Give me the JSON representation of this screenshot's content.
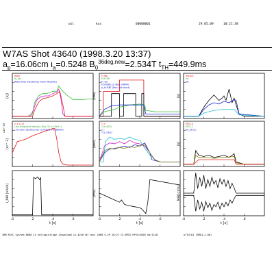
{
  "header": {
    "user": "wil",
    "machine": "kus",
    "code": "00000001",
    "date": "29.05.09",
    "time": "10:21:38"
  },
  "title": "W7AS Shot 43640 (1998.3.20 13:37)",
  "params": {
    "a_label": "a",
    "a_sub": "p",
    "a_value": "=16.06cm",
    "iota_label": "ι",
    "iota_sub": "a",
    "iota_value": "=0.5248",
    "b_label": "B",
    "b_sub": "0",
    "b_sup": "36deg,new",
    "b_value": "=2.534T",
    "t_label": "t",
    "t_sub": "TH",
    "t_value": "=449.9ms"
  },
  "footer": {
    "left": "IBM RISC System 6000  c1 ed/cpplot/ppe /Download c1-4240 AH test 2009.5.29 10:21 CS-BPCS HPSS=3605 ed/1118",
    "right": "w7TU/01 (SMU1.2.80)"
  },
  "colors": {
    "black": "#000000",
    "red": "#e01010",
    "green": "#30c030",
    "blue": "#1020d0",
    "cyan": "#20c0d0",
    "magenta": "#d020d0",
    "olive": "#808000"
  },
  "chart_data": [
    {
      "id": "c1",
      "type": "line",
      "ylabel": "[kJ]",
      "xlim": [
        0,
        0.8
      ],
      "xticks": [
        ".0",
        ".2",
        ".4",
        ".6"
      ],
      "annotations": [
        "Wdia",
        "W_kin",
        "Wdia (N/2) wrecked by mean WLD/8(c)"
      ],
      "series": [
        {
          "color": "green",
          "x": [
            0,
            0.15,
            0.2,
            0.22,
            0.26,
            0.3,
            0.34,
            0.4,
            0.44,
            0.46,
            0.5,
            0.55,
            0.6,
            0.65,
            0.7,
            0.75,
            0.8
          ],
          "y": [
            0.05,
            0.05,
            0.1,
            0.35,
            0.5,
            0.55,
            0.55,
            0.6,
            0.6,
            0.72,
            0.6,
            0.5,
            0.42,
            0.42,
            0.42,
            0.43,
            0.43
          ]
        },
        {
          "color": "magenta",
          "x": [
            0,
            0.18,
            0.21,
            0.24,
            0.28,
            0.32,
            0.36,
            0.4,
            0.44,
            0.46,
            0.48,
            0.5,
            0.52,
            0.8
          ],
          "y": [
            0.05,
            0.05,
            0.2,
            0.4,
            0.48,
            0.5,
            0.5,
            0.55,
            0.58,
            0.65,
            0.45,
            0.1,
            0.05,
            0.05
          ]
        },
        {
          "color": "red",
          "x": [
            0,
            0.2,
            0.22,
            0.26,
            0.3,
            0.35,
            0.4,
            0.44,
            0.47,
            0.5,
            0.52,
            0.8
          ],
          "y": [
            0.05,
            0.05,
            0.18,
            0.36,
            0.44,
            0.46,
            0.5,
            0.55,
            0.6,
            0.3,
            0.05,
            0.05
          ]
        }
      ]
    },
    {
      "id": "c2",
      "type": "line",
      "ylabel": "[MW]",
      "xlim": [
        0,
        0.8
      ],
      "xticks": [
        ".0",
        ".2",
        ".4",
        ".6"
      ],
      "annotations": [
        "P_NBI",
        "P_ECRH",
        "P_rad",
        "Ecrh/NBI L2 (Box: S4R04)",
        "p_lcf BBT (Box: not found)"
      ],
      "series": [
        {
          "color": "red",
          "x": [
            0,
            0.04,
            0.04,
            0.2,
            0.2,
            0.44,
            0.44,
            0.8
          ],
          "y": [
            0.05,
            0.05,
            0.6,
            0.6,
            0.85,
            0.85,
            0.05,
            0.05
          ]
        },
        {
          "color": "black",
          "x": [
            0,
            0.12,
            0.12,
            0.2,
            0.2,
            0.24,
            0.24,
            0.36,
            0.36,
            0.42,
            0.42,
            0.44,
            0.44,
            0.8
          ],
          "y": [
            0.05,
            0.05,
            0.55,
            0.55,
            0.05,
            0.05,
            0.55,
            0.55,
            0.05,
            0.05,
            0.55,
            0.55,
            0.05,
            0.05
          ]
        },
        {
          "color": "green",
          "x": [
            0,
            0.05,
            0.15,
            0.2,
            0.3,
            0.4,
            0.45,
            0.46,
            0.55,
            0.65,
            0.8
          ],
          "y": [
            0.05,
            0.15,
            0.2,
            0.25,
            0.3,
            0.32,
            0.3,
            0.18,
            0.15,
            0.15,
            0.15
          ]
        },
        {
          "color": "blue",
          "x": [
            0,
            0.05,
            0.12,
            0.2,
            0.3,
            0.44,
            0.46,
            0.8
          ],
          "y": [
            0.05,
            0.2,
            0.28,
            0.3,
            0.3,
            0.3,
            0.1,
            0.1
          ]
        }
      ]
    },
    {
      "id": "c3",
      "type": "line",
      "ylabel": "[V]",
      "xlim": [
        0,
        0.8
      ],
      "xticks": [
        ".0",
        ".2",
        ".4",
        ".6"
      ],
      "annotations": [
        "Ha(cpl)",
        "Ha",
        "Hb"
      ],
      "series": [
        {
          "color": "black",
          "x": [
            0,
            0.15,
            0.2,
            0.25,
            0.3,
            0.35,
            0.38,
            0.4,
            0.42,
            0.45,
            0.48,
            0.5,
            0.52,
            0.55,
            0.6,
            0.8
          ],
          "y": [
            0.05,
            0.05,
            0.25,
            0.4,
            0.52,
            0.4,
            0.45,
            0.5,
            0.4,
            0.65,
            0.35,
            0.45,
            0.3,
            0.1,
            0.05,
            0.05
          ]
        },
        {
          "color": "blue",
          "x": [
            0,
            0.15,
            0.2,
            0.25,
            0.3,
            0.35,
            0.4,
            0.45,
            0.5,
            0.52,
            0.55,
            0.8
          ],
          "y": [
            0.05,
            0.05,
            0.2,
            0.3,
            0.35,
            0.32,
            0.38,
            0.35,
            0.42,
            0.4,
            0.1,
            0.05
          ]
        },
        {
          "color": "cyan",
          "x": [
            0,
            0.15,
            0.2,
            0.3,
            0.4,
            0.5,
            0.55,
            0.8
          ],
          "y": [
            0.05,
            0.05,
            0.12,
            0.18,
            0.2,
            0.2,
            0.08,
            0.05
          ]
        }
      ]
    },
    {
      "id": "c4",
      "type": "line",
      "ylabel": "[m^-3]",
      "ylabel_exp": "x10^19",
      "xlim": [
        0,
        0.8
      ],
      "xticks": [
        ".0",
        ".2",
        ".4",
        ".6"
      ],
      "annotations": [
        "n_e (1.5)",
        "Line-integrated density / Box: S1 n2 (Ref 1)",
        "Line aver. density (not 1) (Period: P0556K09)"
      ],
      "series": [
        {
          "color": "red",
          "x": [
            0,
            0.05,
            0.1,
            0.15,
            0.2,
            0.25,
            0.3,
            0.35,
            0.4,
            0.42,
            0.44,
            0.46,
            0.48,
            0.5,
            0.55,
            0.8
          ],
          "y": [
            0.3,
            0.55,
            0.58,
            0.62,
            0.68,
            0.72,
            0.76,
            0.8,
            0.84,
            0.84,
            0.6,
            0.3,
            0.12,
            0.05,
            0.03,
            0.03
          ]
        }
      ]
    },
    {
      "id": "c5",
      "type": "line",
      "ylabel": "[keV]",
      "xlim": [
        0,
        0.8
      ],
      "xticks": [
        ".0",
        ".2",
        ".4",
        ".6"
      ],
      "annotations": [
        "T_e",
        "T_e (ECE)",
        "T_i",
        "T_e (cxrs)"
      ],
      "series": [
        {
          "color": "cyan",
          "x": [
            0,
            0.04,
            0.06,
            0.1,
            0.15,
            0.2,
            0.25,
            0.3,
            0.35,
            0.4,
            0.45,
            0.5,
            0.55,
            0.6,
            0.8
          ],
          "y": [
            0.1,
            0.1,
            0.55,
            0.65,
            0.6,
            0.62,
            0.6,
            0.65,
            0.6,
            0.58,
            0.4,
            0.25,
            0.15,
            0.1,
            0.1
          ]
        },
        {
          "color": "magenta",
          "x": [
            0,
            0.05,
            0.1,
            0.15,
            0.2,
            0.25,
            0.3,
            0.35,
            0.4,
            0.45,
            0.5,
            0.55,
            0.6,
            0.8
          ],
          "y": [
            0.1,
            0.45,
            0.52,
            0.5,
            0.55,
            0.5,
            0.58,
            0.52,
            0.5,
            0.45,
            0.3,
            0.15,
            0.1,
            0.1
          ]
        },
        {
          "color": "blue",
          "x": [
            0,
            0.05,
            0.1,
            0.15,
            0.2,
            0.25,
            0.3,
            0.35,
            0.4,
            0.45,
            0.5,
            0.52,
            0.6,
            0.8
          ],
          "y": [
            0.1,
            0.3,
            0.38,
            0.4,
            0.42,
            0.45,
            0.42,
            0.48,
            0.45,
            0.52,
            0.3,
            0.15,
            0.1,
            0.1
          ]
        },
        {
          "color": "olive",
          "x": [
            0,
            0.05,
            0.1,
            0.15,
            0.2,
            0.25,
            0.3,
            0.35,
            0.4,
            0.45,
            0.5,
            0.55,
            0.6,
            0.8
          ],
          "y": [
            0.1,
            0.35,
            0.4,
            0.38,
            0.42,
            0.4,
            0.44,
            0.42,
            0.46,
            0.48,
            0.3,
            0.15,
            0.1,
            0.1
          ]
        }
      ]
    },
    {
      "id": "c6",
      "type": "line",
      "ylabel": "[V]",
      "xlim": [
        0,
        0.8
      ],
      "xticks": [
        ".0",
        ".2",
        ".4",
        ".6"
      ],
      "annotations": [
        "EPC1.0",
        "EPC1.1",
        "Ha_p6 (1)"
      ],
      "series": [
        {
          "color": "black",
          "x": [
            0,
            0.1,
            0.12,
            0.15,
            0.2,
            0.25,
            0.3,
            0.35,
            0.4,
            0.45,
            0.5,
            0.52,
            0.6,
            0.8
          ],
          "y": [
            0.05,
            0.05,
            0.35,
            0.25,
            0.22,
            0.25,
            0.2,
            0.22,
            0.25,
            0.2,
            0.28,
            0.1,
            0.05,
            0.05
          ]
        },
        {
          "color": "olive",
          "x": [
            0,
            0.1,
            0.12,
            0.15,
            0.2,
            0.3,
            0.4,
            0.5,
            0.52,
            0.6,
            0.8
          ],
          "y": [
            0.05,
            0.05,
            0.25,
            0.2,
            0.2,
            0.18,
            0.2,
            0.22,
            0.08,
            0.05,
            0.05
          ]
        },
        {
          "color": "red",
          "x": [
            0,
            0.1,
            0.15,
            0.2,
            0.3,
            0.4,
            0.5,
            0.52,
            0.8
          ],
          "y": [
            0.05,
            0.05,
            0.15,
            0.15,
            0.15,
            0.15,
            0.15,
            0.05,
            0.05
          ]
        }
      ]
    },
    {
      "id": "c7",
      "type": "line",
      "ylabel": "I_NBI [mV/A]",
      "xlim": [
        0,
        0.8
      ],
      "xticks": [
        ".0",
        ".2",
        ".4",
        ".6"
      ],
      "xlabel": "t [s]",
      "series": [
        {
          "color": "black",
          "x": [
            0,
            0.15,
            0.2,
            0.21,
            0.23,
            0.25,
            0.27,
            0.28,
            0.29,
            0.8
          ],
          "y": [
            0.02,
            0.02,
            0.02,
            0.85,
            0.82,
            0.86,
            0.8,
            0.85,
            0.02,
            0.02
          ]
        }
      ]
    },
    {
      "id": "c8",
      "type": "line",
      "ylabel": "[mV]",
      "xlim": [
        0,
        0.8
      ],
      "xticks": [
        ".0",
        ".2",
        ".4",
        ".6"
      ],
      "xlabel": "t [s]",
      "series": [
        {
          "color": "black",
          "x": [
            0,
            0.05,
            0.1,
            0.15,
            0.2,
            0.22,
            0.25,
            0.3,
            0.35,
            0.4,
            0.42,
            0.44,
            0.46,
            0.48,
            0.5,
            0.55,
            0.6,
            0.65,
            0.7,
            0.75,
            0.8
          ],
          "y": [
            0.5,
            0.45,
            0.4,
            0.35,
            0.3,
            0.35,
            0.25,
            0.22,
            0.2,
            0.18,
            0.15,
            0.1,
            0.05,
            0.3,
            0.8,
            0.78,
            0.76,
            0.74,
            0.72,
            0.7,
            0.68
          ]
        }
      ]
    },
    {
      "id": "c9",
      "type": "line",
      "ylabel": "MHD [V/s]",
      "xlim": [
        0,
        0.8
      ],
      "xticks": [
        ".0",
        ".2",
        ".4",
        ".6"
      ],
      "xlabel": "t [s]",
      "series": [
        {
          "color": "black",
          "x": [
            0,
            0.1,
            0.12,
            0.14,
            0.16,
            0.18,
            0.2,
            0.22,
            0.24,
            0.26,
            0.28,
            0.3,
            0.32,
            0.34,
            0.36,
            0.38,
            0.4,
            0.42,
            0.44,
            0.46,
            0.48,
            0.5,
            0.52,
            0.6,
            0.8
          ],
          "y": [
            0.5,
            0.5,
            0.95,
            0.6,
            0.85,
            0.65,
            0.9,
            0.6,
            0.8,
            0.65,
            0.85,
            0.7,
            0.78,
            0.62,
            0.82,
            0.7,
            0.8,
            0.65,
            0.78,
            0.6,
            0.72,
            0.62,
            0.5,
            0.5,
            0.5
          ]
        },
        {
          "color": "black",
          "x": [
            0,
            0.1,
            0.12,
            0.14,
            0.16,
            0.18,
            0.2,
            0.22,
            0.24,
            0.26,
            0.28,
            0.3,
            0.32,
            0.34,
            0.36,
            0.38,
            0.4,
            0.42,
            0.44,
            0.46,
            0.48,
            0.5,
            0.52,
            0.6,
            0.8
          ],
          "y": [
            0.45,
            0.45,
            0.1,
            0.35,
            0.15,
            0.3,
            0.1,
            0.32,
            0.18,
            0.28,
            0.12,
            0.25,
            0.2,
            0.3,
            0.15,
            0.28,
            0.2,
            0.3,
            0.22,
            0.35,
            0.28,
            0.38,
            0.45,
            0.45,
            0.45
          ]
        }
      ]
    }
  ]
}
